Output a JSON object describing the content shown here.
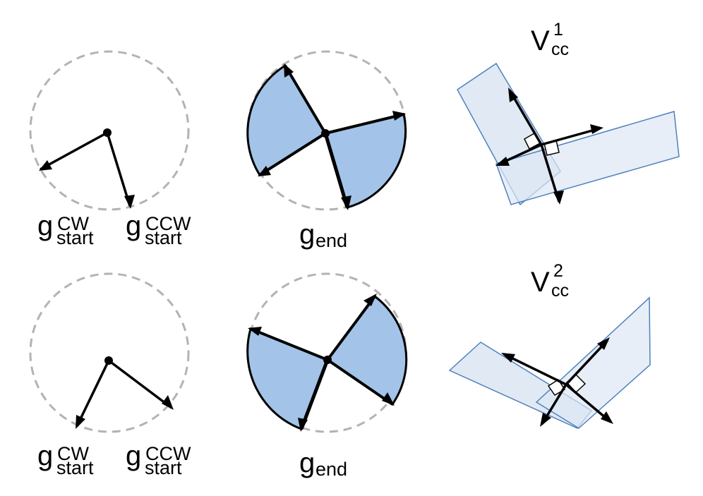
{
  "labels": {
    "row1": {
      "g_cw": {
        "base": "g",
        "sup": "CW",
        "sub": "start"
      },
      "g_ccw": {
        "base": "g",
        "sup": "CCW",
        "sub": "start"
      },
      "g_end": {
        "base": "g",
        "sub": "end"
      },
      "v": {
        "base": "V",
        "sup": "1",
        "sub": "cc"
      }
    },
    "row2": {
      "g_cw": {
        "base": "g",
        "sup": "CW",
        "sub": "start"
      },
      "g_ccw": {
        "base": "g",
        "sup": "CCW",
        "sub": "start"
      },
      "g_end": {
        "base": "g",
        "sub": "end"
      },
      "v": {
        "base": "V",
        "sup": "2",
        "sub": "cc"
      }
    }
  },
  "colors": {
    "sector_fill": "#a3c4e8",
    "rect_fill": "#dde7f3",
    "rect_stroke": "#4f81bd",
    "dashed_circle": "#b3b3b3",
    "arrow": "#000000"
  }
}
